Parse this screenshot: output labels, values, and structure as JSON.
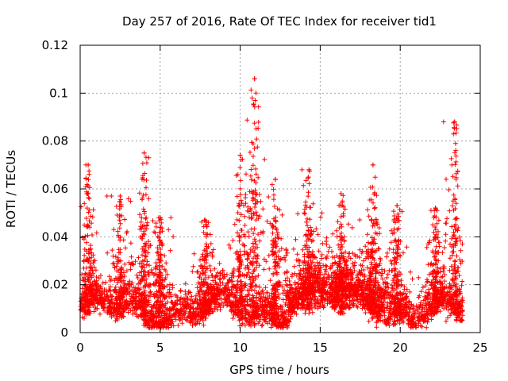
{
  "chart_data": {
    "type": "scatter",
    "title": "Day 257 of 2016, Rate Of TEC Index for receiver tid1",
    "xlabel": "GPS time / hours",
    "ylabel": "ROTI / TECUs",
    "xlim": [
      0,
      25
    ],
    "ylim": [
      0,
      0.12
    ],
    "x_ticks": [
      0,
      5,
      10,
      15,
      20,
      25
    ],
    "y_ticks": [
      0,
      0.02,
      0.04,
      0.06,
      0.08,
      0.1,
      0.12
    ],
    "x_tick_labels": [
      "0",
      "5",
      "10",
      "15",
      "20",
      "25"
    ],
    "y_tick_labels": [
      "0",
      "0.02",
      "0.04",
      "0.06",
      "0.08",
      "0.1",
      "0.12"
    ],
    "grid": true,
    "marker": "+",
    "marker_color": "#ff0000",
    "data_end_hour": 23.9,
    "series": [
      {
        "name": "ROTI",
        "description": "dense scatter of ROTI samples, baseline ~0.005-0.02, with event spikes",
        "peaks": [
          {
            "x": 0.5,
            "y": 0.07
          },
          {
            "x": 2.5,
            "y": 0.057
          },
          {
            "x": 4.0,
            "y": 0.075
          },
          {
            "x": 5.0,
            "y": 0.048
          },
          {
            "x": 7.8,
            "y": 0.047
          },
          {
            "x": 10.0,
            "y": 0.074
          },
          {
            "x": 10.9,
            "y": 0.106
          },
          {
            "x": 12.2,
            "y": 0.064
          },
          {
            "x": 14.3,
            "y": 0.068
          },
          {
            "x": 16.3,
            "y": 0.058
          },
          {
            "x": 18.3,
            "y": 0.07
          },
          {
            "x": 19.8,
            "y": 0.053
          },
          {
            "x": 22.2,
            "y": 0.052
          },
          {
            "x": 23.4,
            "y": 0.088
          }
        ]
      }
    ]
  }
}
